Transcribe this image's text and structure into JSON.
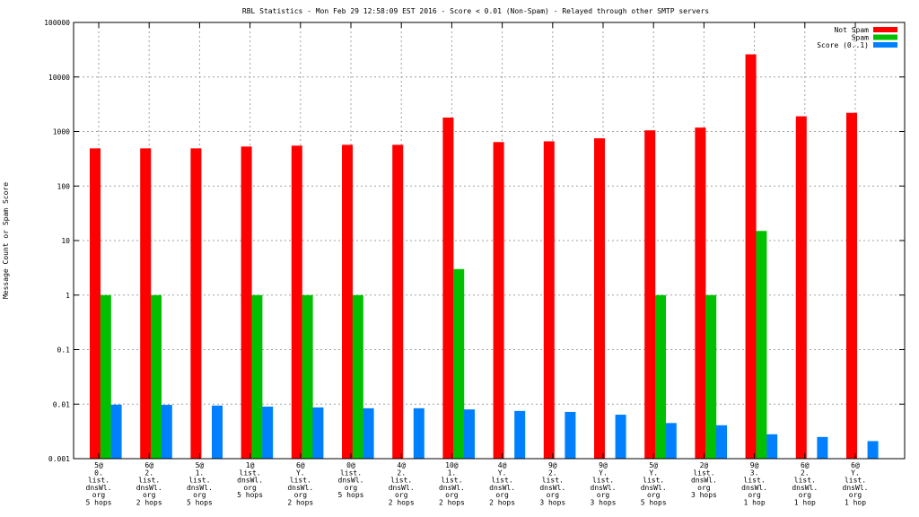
{
  "chart_data": {
    "type": "bar",
    "title": "RBL Statistics - Mon Feb 29 12:58:09 EST 2016 - Score < 0.01 (Non-Spam) - Relayed through other SMTP servers",
    "xlabel": "",
    "ylabel": "Message Count or Spam Score",
    "yscale": "log",
    "ylim": [
      0.001,
      100000
    ],
    "yticks": [
      "0.001",
      "0.01",
      "0.1",
      "1",
      "10",
      "100",
      "1000",
      "10000",
      "100000"
    ],
    "grid": true,
    "legend_position": "top-right",
    "categories": [
      [
        "5@",
        "0.",
        "list.",
        "dnsWl.",
        "org",
        "5 hops"
      ],
      [
        "6@",
        "2.",
        "list.",
        "dnsWl.",
        "org",
        "2 hops"
      ],
      [
        "5@",
        "1.",
        "list.",
        "dnsWl.",
        "org",
        "5 hops"
      ],
      [
        "1@",
        "list.",
        "dnsWl.",
        "org",
        "5 hops"
      ],
      [
        "6@",
        "Y.",
        "list.",
        "dnsWl.",
        "org",
        "2 hops"
      ],
      [
        "0@",
        "list.",
        "dnsWl.",
        "org",
        "5 hops"
      ],
      [
        "4@",
        "2.",
        "list.",
        "dnsWl.",
        "org",
        "2 hops"
      ],
      [
        "10@",
        "1.",
        "list.",
        "dnsWl.",
        "org",
        "2 hops"
      ],
      [
        "4@",
        "Y.",
        "list.",
        "dnsWl.",
        "org",
        "2 hops"
      ],
      [
        "9@",
        "2.",
        "list.",
        "dnsWl.",
        "org",
        "3 hops"
      ],
      [
        "9@",
        "Y.",
        "list.",
        "dnsWl.",
        "org",
        "3 hops"
      ],
      [
        "5@",
        "Y.",
        "list.",
        "dnsWl.",
        "org",
        "5 hops"
      ],
      [
        "2@",
        "list.",
        "dnsWl.",
        "org",
        "3 hops"
      ],
      [
        "9@",
        "3.",
        "list.",
        "dnsWl.",
        "org",
        "1 hop"
      ],
      [
        "6@",
        "2.",
        "list.",
        "dnsWl.",
        "org",
        "1 hop"
      ],
      [
        "6@",
        "Y.",
        "list.",
        "dnsWl.",
        "org",
        "1 hop"
      ]
    ],
    "series": [
      {
        "name": "Not Spam",
        "color": "#ff0000",
        "values": [
          490,
          490,
          490,
          530,
          550,
          570,
          570,
          1800,
          640,
          660,
          750,
          1050,
          1180,
          26000,
          1900,
          2200
        ]
      },
      {
        "name": "Spam",
        "color": "#00c000",
        "values": [
          1,
          1,
          null,
          1,
          1,
          1,
          null,
          3,
          null,
          null,
          null,
          1,
          1,
          15,
          null,
          null
        ]
      },
      {
        "name": "Score (0..1)",
        "color": "#0080ff",
        "values": [
          0.0098,
          0.0097,
          0.0094,
          0.009,
          0.0087,
          0.0084,
          0.0084,
          0.008,
          0.0075,
          0.0072,
          0.0064,
          0.0045,
          0.0041,
          0.0028,
          0.0025,
          0.0021
        ]
      }
    ]
  }
}
